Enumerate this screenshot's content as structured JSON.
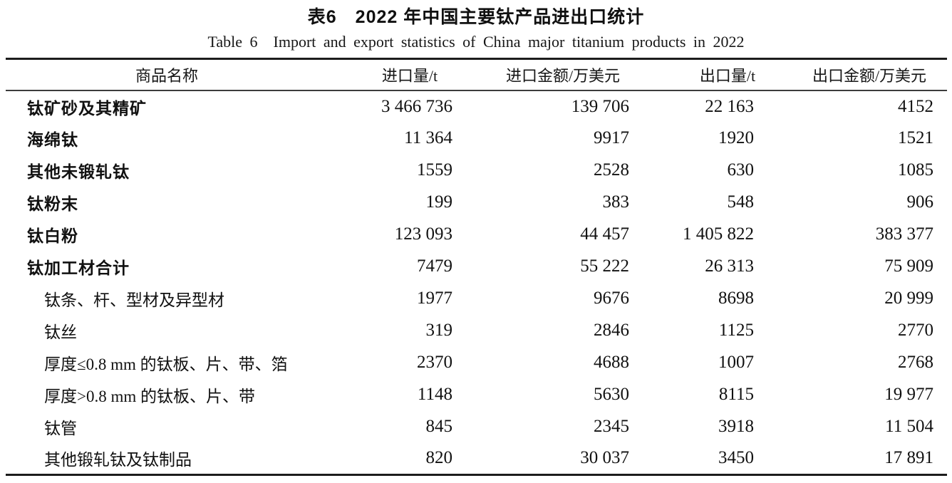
{
  "page": {
    "title_cn": "表6　2022 年中国主要钛产品进出口统计",
    "title_en": "Table 6　Import and export statistics of China major titanium products in 2022"
  },
  "table": {
    "columns": [
      {
        "label": "商品名称"
      },
      {
        "label": "进口量/t"
      },
      {
        "label": "进口金额/万美元"
      },
      {
        "label": "出口量/t"
      },
      {
        "label": "出口金额/万美元"
      }
    ],
    "rows": [
      {
        "name": "钛矿砂及其精矿",
        "level": "main",
        "import_qty": "3 466 736",
        "import_value": "139 706",
        "export_qty": "22 163",
        "export_value": "4152"
      },
      {
        "name": "海绵钛",
        "level": "main",
        "import_qty": "11 364",
        "import_value": "9917",
        "export_qty": "1920",
        "export_value": "1521"
      },
      {
        "name": "其他未锻轧钛",
        "level": "main",
        "import_qty": "1559",
        "import_value": "2528",
        "export_qty": "630",
        "export_value": "1085"
      },
      {
        "name": "钛粉末",
        "level": "main",
        "import_qty": "199",
        "import_value": "383",
        "export_qty": "548",
        "export_value": "906"
      },
      {
        "name": "钛白粉",
        "level": "main",
        "import_qty": "123 093",
        "import_value": "44 457",
        "export_qty": "1 405 822",
        "export_value": "383 377"
      },
      {
        "name": "钛加工材合计",
        "level": "main",
        "import_qty": "7479",
        "import_value": "55 222",
        "export_qty": "26 313",
        "export_value": "75 909"
      },
      {
        "name": "钛条、杆、型材及异型材",
        "level": "sub",
        "import_qty": "1977",
        "import_value": "9676",
        "export_qty": "8698",
        "export_value": "20 999"
      },
      {
        "name": "钛丝",
        "level": "sub",
        "import_qty": "319",
        "import_value": "2846",
        "export_qty": "1125",
        "export_value": "2770"
      },
      {
        "name": "厚度≤0.8 mm 的钛板、片、带、箔",
        "level": "sub",
        "import_qty": "2370",
        "import_value": "4688",
        "export_qty": "1007",
        "export_value": "2768"
      },
      {
        "name": "厚度>0.8 mm 的钛板、片、带",
        "level": "sub",
        "import_qty": "1148",
        "import_value": "5630",
        "export_qty": "8115",
        "export_value": "19 977"
      },
      {
        "name": "钛管",
        "level": "sub",
        "import_qty": "845",
        "import_value": "2345",
        "export_qty": "3918",
        "export_value": "11 504"
      },
      {
        "name": "其他锻轧钛及钛制品",
        "level": "sub",
        "import_qty": "820",
        "import_value": "30 037",
        "export_qty": "3450",
        "export_value": "17 891"
      }
    ]
  }
}
